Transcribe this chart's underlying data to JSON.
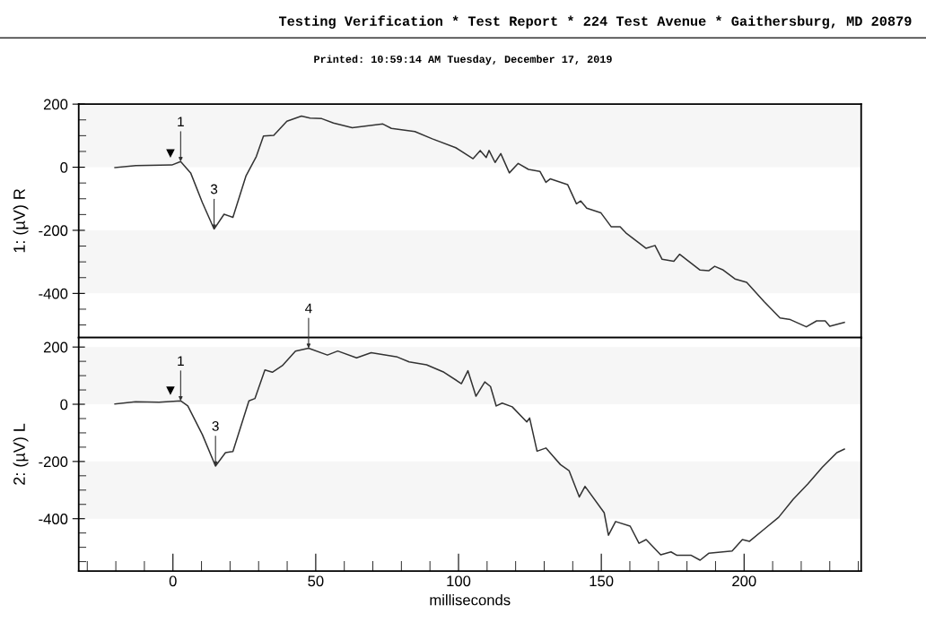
{
  "chart_data": [
    {
      "type": "line",
      "title": "Testing Verification * Test Report * 224 Test Avenue * Gaithersburg, MD 20879",
      "subtitle": "Printed: 10:59:14 AM Tuesday, December 17, 2019",
      "ylabel": "1: (µV) R",
      "series": [
        {
          "color": "#333333",
          "x": [
            -20.3,
            -13,
            -0.4,
            2.7,
            6.2,
            10.3,
            14.4,
            17.9,
            21,
            25.6,
            29.2,
            31.7,
            35.3,
            39.9,
            45,
            48,
            52.1,
            56.2,
            62.8,
            73.5,
            76.5,
            84.7,
            90.8,
            99,
            105.1,
            107.6,
            109.7,
            110.7,
            112.8,
            114.8,
            117.8,
            120.9,
            124.5,
            128.5,
            130.6,
            132.1,
            138.2,
            141.3,
            142.8,
            144.9,
            149.9,
            153.5,
            156.6,
            158.6,
            165.7,
            168.8,
            171.3,
            175.4,
            177.4,
            184.6,
            187.6,
            189.7,
            192.7,
            196.8,
            200.9,
            207,
            212.6,
            216.2,
            221.8,
            225.4,
            228.4,
            230,
            235.1
          ],
          "values": [
            -1,
            5,
            7,
            18,
            -18,
            -112,
            -196,
            -149,
            -159,
            -27,
            34,
            99,
            101,
            146,
            162,
            156,
            154,
            140,
            125,
            137,
            123,
            113,
            90,
            62,
            27,
            53,
            31,
            53,
            15,
            43,
            -18,
            12,
            -7,
            -13,
            -48,
            -37,
            -55,
            -116,
            -107,
            -130,
            -145,
            -189,
            -189,
            -208,
            -257,
            -248,
            -292,
            -298,
            -276,
            -326,
            -328,
            -314,
            -326,
            -354,
            -365,
            -426,
            -478,
            -483,
            -506,
            -487,
            -487,
            -504,
            -492
          ]
        }
      ],
      "xlim": [
        -33,
        241
      ],
      "ylim": [
        -540,
        200
      ],
      "yticks": [
        {
          "value": -500,
          "label": null
        },
        {
          "value": -450,
          "label": null
        },
        -400,
        {
          "value": -350,
          "label": null
        },
        {
          "value": -300,
          "label": null
        },
        {
          "value": -250,
          "label": null
        },
        -200,
        {
          "value": -150,
          "label": null
        },
        {
          "value": -100,
          "label": null
        },
        {
          "value": -50,
          "label": null
        },
        0,
        {
          "value": 50,
          "label": null
        },
        {
          "value": 100,
          "label": null
        },
        {
          "value": 150,
          "label": null
        },
        200
      ],
      "tick_labels": "y",
      "grid": false,
      "legend": false,
      "bands": [
        {
          "axis": "y",
          "from": 0,
          "to": 200,
          "color": "#f6f6f6"
        },
        {
          "axis": "y",
          "from": -400,
          "to": -200,
          "color": "#f6f6f6"
        }
      ],
      "annotations": [
        {
          "text": "▼",
          "x": 0,
          "y": 7
        },
        {
          "text": "1",
          "x": 2.7,
          "y": 18
        },
        {
          "text": "3",
          "x": 14.4,
          "y": -196
        }
      ]
    },
    {
      "type": "line",
      "xlabel": "milliseconds",
      "ylabel": "2: (µV) L",
      "series": [
        {
          "color": "#333333",
          "x": [
            -20.3,
            -13.1,
            -4.9,
            2.7,
            5.2,
            10.3,
            14.9,
            18.4,
            21,
            26.6,
            28.7,
            32.2,
            34.8,
            38.3,
            42.9,
            47.5,
            54.1,
            57.7,
            64.3,
            69.4,
            78.6,
            82.7,
            88.8,
            94.9,
            101,
            103.3,
            106.1,
            109.2,
            111.2,
            113.2,
            115.3,
            118.8,
            123.9,
            124.9,
            127.5,
            130.6,
            135.7,
            138.7,
            142.3,
            144.3,
            151,
            152.5,
            155,
            160.1,
            163.2,
            165.7,
            170.8,
            174.4,
            176.5,
            181.5,
            184.6,
            187.6,
            195.8,
            199.4,
            201.9,
            207,
            212.1,
            217.2,
            222.3,
            227.4,
            232.5,
            235.1
          ],
          "values": [
            1,
            9,
            7,
            12,
            -6,
            -106,
            -216,
            -169,
            -165,
            12,
            20,
            120,
            112,
            135,
            186,
            196,
            172,
            186,
            162,
            180,
            165,
            148,
            138,
            112,
            72,
            117,
            28,
            78,
            62,
            -6,
            4,
            -9,
            -62,
            -48,
            -164,
            -153,
            -211,
            -232,
            -324,
            -287,
            -379,
            -458,
            -410,
            -426,
            -486,
            -473,
            -526,
            -516,
            -528,
            -528,
            -545,
            -521,
            -513,
            -473,
            -479,
            -437,
            -395,
            -332,
            -279,
            -220,
            -169,
            -157
          ]
        }
      ],
      "xlim": [
        -33,
        241
      ],
      "ylim": [
        -583,
        233
      ],
      "yticks": [
        {
          "value": -550,
          "label": null
        },
        {
          "value": -500,
          "label": null
        },
        {
          "value": -450,
          "label": null
        },
        -400,
        {
          "value": -350,
          "label": null
        },
        {
          "value": -300,
          "label": null
        },
        {
          "value": -250,
          "label": null
        },
        -200,
        {
          "value": -150,
          "label": null
        },
        {
          "value": -100,
          "label": null
        },
        {
          "value": -50,
          "label": null
        },
        0,
        {
          "value": 50,
          "label": null
        },
        {
          "value": 100,
          "label": null
        },
        {
          "value": 150,
          "label": null
        },
        200
      ],
      "xticks": [
        {
          "value": -30,
          "label": null
        },
        {
          "value": -20,
          "label": null
        },
        {
          "value": -10,
          "label": null
        },
        0,
        {
          "value": 10,
          "label": null
        },
        {
          "value": 20,
          "label": null
        },
        {
          "value": 30,
          "label": null
        },
        {
          "value": 40,
          "label": null
        },
        50,
        {
          "value": 60,
          "label": null
        },
        {
          "value": 70,
          "label": null
        },
        {
          "value": 80,
          "label": null
        },
        {
          "value": 90,
          "label": null
        },
        100,
        {
          "value": 110,
          "label": null
        },
        {
          "value": 120,
          "label": null
        },
        {
          "value": 130,
          "label": null
        },
        {
          "value": 140,
          "label": null
        },
        150,
        {
          "value": 160,
          "label": null
        },
        {
          "value": 170,
          "label": null
        },
        {
          "value": 180,
          "label": null
        },
        {
          "value": 190,
          "label": null
        },
        200,
        {
          "value": 210,
          "label": null
        },
        {
          "value": 220,
          "label": null
        },
        {
          "value": 230,
          "label": null
        },
        {
          "value": 240,
          "label": null
        }
      ],
      "grid": false,
      "legend": false,
      "bands": [
        {
          "axis": "y",
          "from": 0,
          "to": 200,
          "color": "#f6f6f6"
        },
        {
          "axis": "y",
          "from": -400,
          "to": -200,
          "color": "#f6f6f6"
        }
      ],
      "annotations": [
        {
          "text": "▼",
          "x": 0,
          "y": 7
        },
        {
          "text": "1",
          "x": 2.7,
          "y": 12
        },
        {
          "text": "3",
          "x": 14.9,
          "y": -216
        },
        {
          "text": "4",
          "x": 47.5,
          "y": 196
        }
      ]
    }
  ]
}
